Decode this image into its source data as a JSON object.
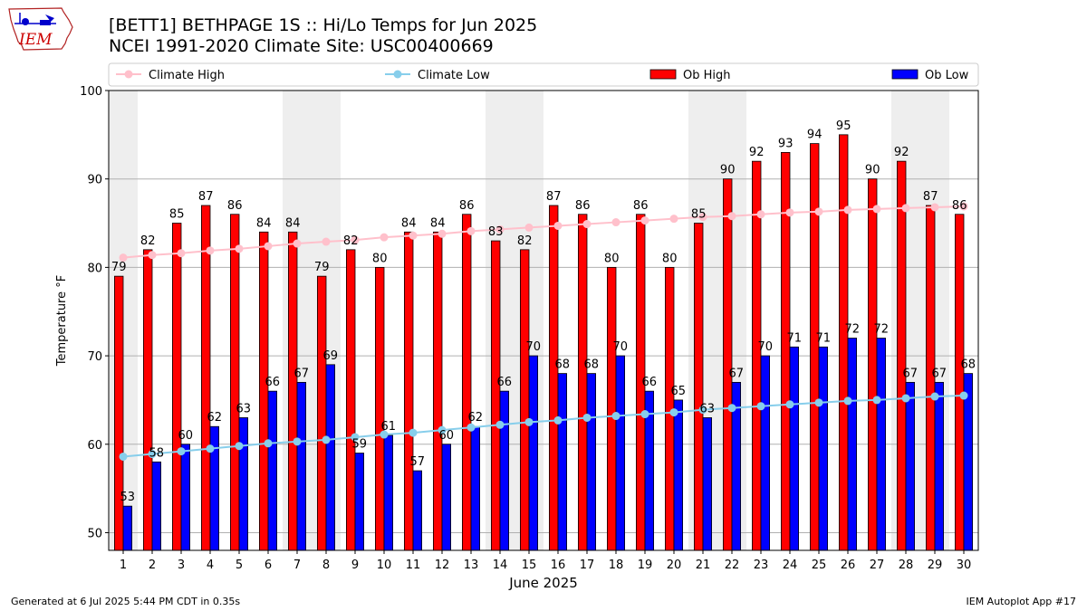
{
  "header": {
    "title_line1": "[BETT1] BETHPAGE 1S :: Hi/Lo Temps for Jun 2025",
    "title_line2": "NCEI 1991-2020 Climate Site: USC00400669"
  },
  "logo": {
    "text": "IEM"
  },
  "footer": {
    "generated": "Generated at 6 Jul 2025 5:44 PM CDT in 0.35s",
    "app": "IEM Autoplot App #17"
  },
  "colors": {
    "ob_high": "#ff0000",
    "ob_low": "#0000ff",
    "climate_high": "#ffc0cb",
    "climate_low": "#87ceeb",
    "weekend_band": "#eeeeee"
  },
  "chart_data": {
    "type": "bar",
    "xlabel": "June 2025",
    "ylabel": "Temperature °F",
    "ylim": [
      48,
      100
    ],
    "yticks": [
      50,
      60,
      70,
      80,
      90,
      100
    ],
    "grid": true,
    "legend_position": "top",
    "categories": [
      "1",
      "2",
      "3",
      "4",
      "5",
      "6",
      "7",
      "8",
      "9",
      "10",
      "11",
      "12",
      "13",
      "14",
      "15",
      "16",
      "17",
      "18",
      "19",
      "20",
      "21",
      "22",
      "23",
      "24",
      "25",
      "26",
      "27",
      "28",
      "29",
      "30"
    ],
    "weekend_days": [
      1,
      7,
      8,
      14,
      15,
      21,
      22,
      28,
      29
    ],
    "series": [
      {
        "name": "Ob High",
        "kind": "bar",
        "values": [
          79,
          82,
          85,
          87,
          86,
          84,
          84,
          79,
          82,
          80,
          84,
          84,
          86,
          83,
          82,
          87,
          86,
          80,
          86,
          80,
          85,
          90,
          92,
          93,
          94,
          95,
          90,
          92,
          87,
          86
        ]
      },
      {
        "name": "Ob Low",
        "kind": "bar",
        "values": [
          53,
          58,
          60,
          62,
          63,
          66,
          67,
          69,
          59,
          61,
          57,
          60,
          62,
          66,
          70,
          68,
          68,
          70,
          66,
          65,
          63,
          67,
          70,
          71,
          71,
          72,
          72,
          67,
          67,
          68
        ]
      },
      {
        "name": "Climate High",
        "kind": "line",
        "values": [
          81.1,
          81.4,
          81.6,
          81.9,
          82.1,
          82.4,
          82.7,
          82.9,
          83.1,
          83.4,
          83.6,
          83.8,
          84.1,
          84.3,
          84.5,
          84.7,
          84.9,
          85.1,
          85.3,
          85.5,
          85.7,
          85.8,
          86.0,
          86.2,
          86.3,
          86.5,
          86.6,
          86.7,
          86.8,
          86.9
        ]
      },
      {
        "name": "Climate Low",
        "kind": "line",
        "values": [
          58.6,
          58.9,
          59.2,
          59.5,
          59.8,
          60.1,
          60.3,
          60.5,
          60.8,
          61.1,
          61.3,
          61.6,
          61.9,
          62.2,
          62.5,
          62.7,
          63.0,
          63.2,
          63.4,
          63.6,
          63.9,
          64.1,
          64.3,
          64.5,
          64.7,
          64.9,
          65.0,
          65.2,
          65.4,
          65.5
        ]
      }
    ]
  }
}
